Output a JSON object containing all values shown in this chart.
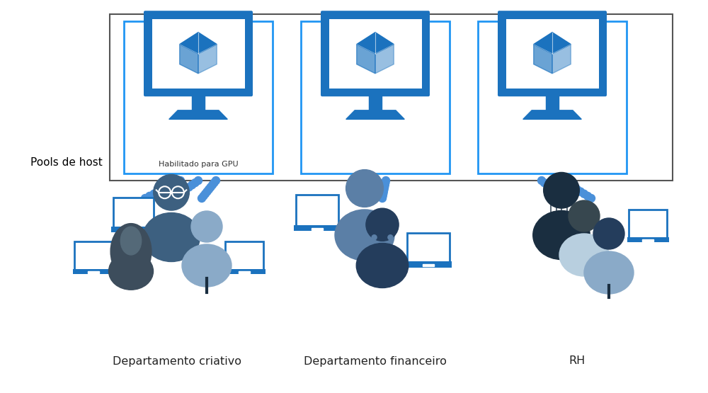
{
  "bg_color": "#ffffff",
  "pools_label": "Pools de host",
  "gpu_label": "Habilitado para GPU",
  "departments": [
    "Departamento criativo",
    "Departamento financeiro",
    "RH"
  ],
  "blue": "#1B72BE",
  "light_blue": "#2196F3",
  "arrow_blue": "#4A90D9",
  "box_border": "#555555",
  "colors": {
    "dark_navy": "#1A2E40",
    "dark_blue": "#243D5C",
    "mid_blue": "#3D6080",
    "slate": "#5B7FA6",
    "light_slate": "#8AAAC8",
    "pale_blue": "#B8CFDF",
    "gray_blue": "#607D8B",
    "dark_gray": "#37474F",
    "hijab_dark": "#3D4D5C",
    "hijab_mid": "#546978",
    "hijab_light": "#788FA0"
  }
}
